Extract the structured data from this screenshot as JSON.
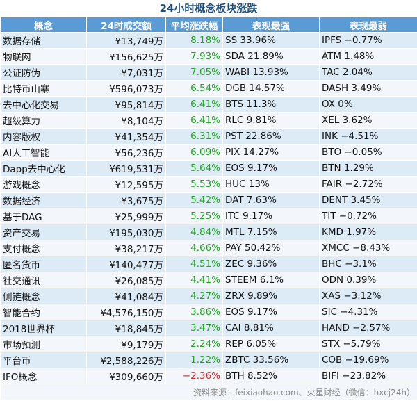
{
  "title": "24小时概念板块涨跌",
  "headers": [
    "概念",
    "24时成交额",
    "平均涨跌幅",
    "表现最强",
    "表现最弱"
  ],
  "rows": [
    {
      "concept": "数据存储",
      "volume": "¥13,749万",
      "change": "8.18%",
      "dir": "pos",
      "strongest": "SS 33.96%",
      "weakest": "IPFS −0.77%"
    },
    {
      "concept": "物联网",
      "volume": "¥156,625万",
      "change": "7.93%",
      "dir": "pos",
      "strongest": "SDA 21.89%",
      "weakest": "ATM 1.48%"
    },
    {
      "concept": "公证防伪",
      "volume": "¥7,031万",
      "change": "7.05%",
      "dir": "pos",
      "strongest": "WABI 13.93%",
      "weakest": "TAC 2.04%"
    },
    {
      "concept": "比特币山寨",
      "volume": "¥596,073万",
      "change": "6.54%",
      "dir": "pos",
      "strongest": "DGB 14.57%",
      "weakest": "DASH 3.49%"
    },
    {
      "concept": "去中心化交易",
      "volume": "¥95,814万",
      "change": "6.41%",
      "dir": "pos",
      "strongest": "BTS 11.3%",
      "weakest": "OX 0%"
    },
    {
      "concept": "超级算力",
      "volume": "¥8,104万",
      "change": "6.41%",
      "dir": "pos",
      "strongest": "RLC 9.81%",
      "weakest": "XEL 3.62%"
    },
    {
      "concept": "内容版权",
      "volume": "¥41,354万",
      "change": "6.31%",
      "dir": "pos",
      "strongest": "PST 22.86%",
      "weakest": "INK −4.51%"
    },
    {
      "concept": "AI人工智能",
      "volume": "¥56,236万",
      "change": "6.09%",
      "dir": "pos",
      "strongest": "PIX 14.27%",
      "weakest": "BTO −0.05%"
    },
    {
      "concept": "Dapp去中心化",
      "volume": "¥619,531万",
      "change": "5.64%",
      "dir": "pos",
      "strongest": "EOS 9.17%",
      "weakest": "BTN 1.29%"
    },
    {
      "concept": "游戏概念",
      "volume": "¥12,595万",
      "change": "5.53%",
      "dir": "pos",
      "strongest": "HUC 13%",
      "weakest": "FAIR −2.72%"
    },
    {
      "concept": "数据经济",
      "volume": "¥3,675万",
      "change": "5.42%",
      "dir": "pos",
      "strongest": "DAT 7.63%",
      "weakest": "DENT 3.45%"
    },
    {
      "concept": "基于DAG",
      "volume": "¥25,999万",
      "change": "5.25%",
      "dir": "pos",
      "strongest": "ITC 9.17%",
      "weakest": "TIT −0.72%"
    },
    {
      "concept": "资产交易",
      "volume": "¥195,030万",
      "change": "4.84%",
      "dir": "pos",
      "strongest": "MTL 7.15%",
      "weakest": "KMD 1.97%"
    },
    {
      "concept": "支付概念",
      "volume": "¥38,217万",
      "change": "4.66%",
      "dir": "pos",
      "strongest": "PAY 50.42%",
      "weakest": "XMCC −8.43%"
    },
    {
      "concept": "匿名货币",
      "volume": "¥140,477万",
      "change": "4.51%",
      "dir": "pos",
      "strongest": "ZEC 9.36%",
      "weakest": "BHC −3.1%"
    },
    {
      "concept": "社交通讯",
      "volume": "¥26,085万",
      "change": "4.41%",
      "dir": "pos",
      "strongest": "STEEM 6.1%",
      "weakest": "ODN 0.39%"
    },
    {
      "concept": "侧链概念",
      "volume": "¥41,084万",
      "change": "4.27%",
      "dir": "pos",
      "strongest": "ZRX 9.89%",
      "weakest": "XAS −3.12%"
    },
    {
      "concept": "智能合约",
      "volume": "¥4,576,150万",
      "change": "3.86%",
      "dir": "pos",
      "strongest": "EOS 9.17%",
      "weakest": "SIC −4.31%"
    },
    {
      "concept": "2018世界杯",
      "volume": "¥18,845万",
      "change": "3.47%",
      "dir": "pos",
      "strongest": "CAI 8.81%",
      "weakest": "HAND −2.57%"
    },
    {
      "concept": "市场预测",
      "volume": "¥9,179万",
      "change": "2.24%",
      "dir": "pos",
      "strongest": "REP 6.05%",
      "weakest": "STX −5.79%"
    },
    {
      "concept": "平台币",
      "volume": "¥2,588,226万",
      "change": "1.22%",
      "dir": "pos",
      "strongest": "ZBTC 33.56%",
      "weakest": "COB −19.69%"
    },
    {
      "concept": "IFO概念",
      "volume": "¥309,660万",
      "change": "−2.36%",
      "dir": "neg",
      "strongest": "BTH 8.52%",
      "weakest": "BIFI −23.82%"
    }
  ],
  "source": "资料来源：feixiaohao.com、火星财经（微信：hxcj24h）",
  "colors": {
    "header_bg": "#5b9bd5",
    "row_odd": "#ddebf7",
    "row_even": "#f3f7fb",
    "positive": "#1aa81a",
    "negative": "#e02020"
  }
}
